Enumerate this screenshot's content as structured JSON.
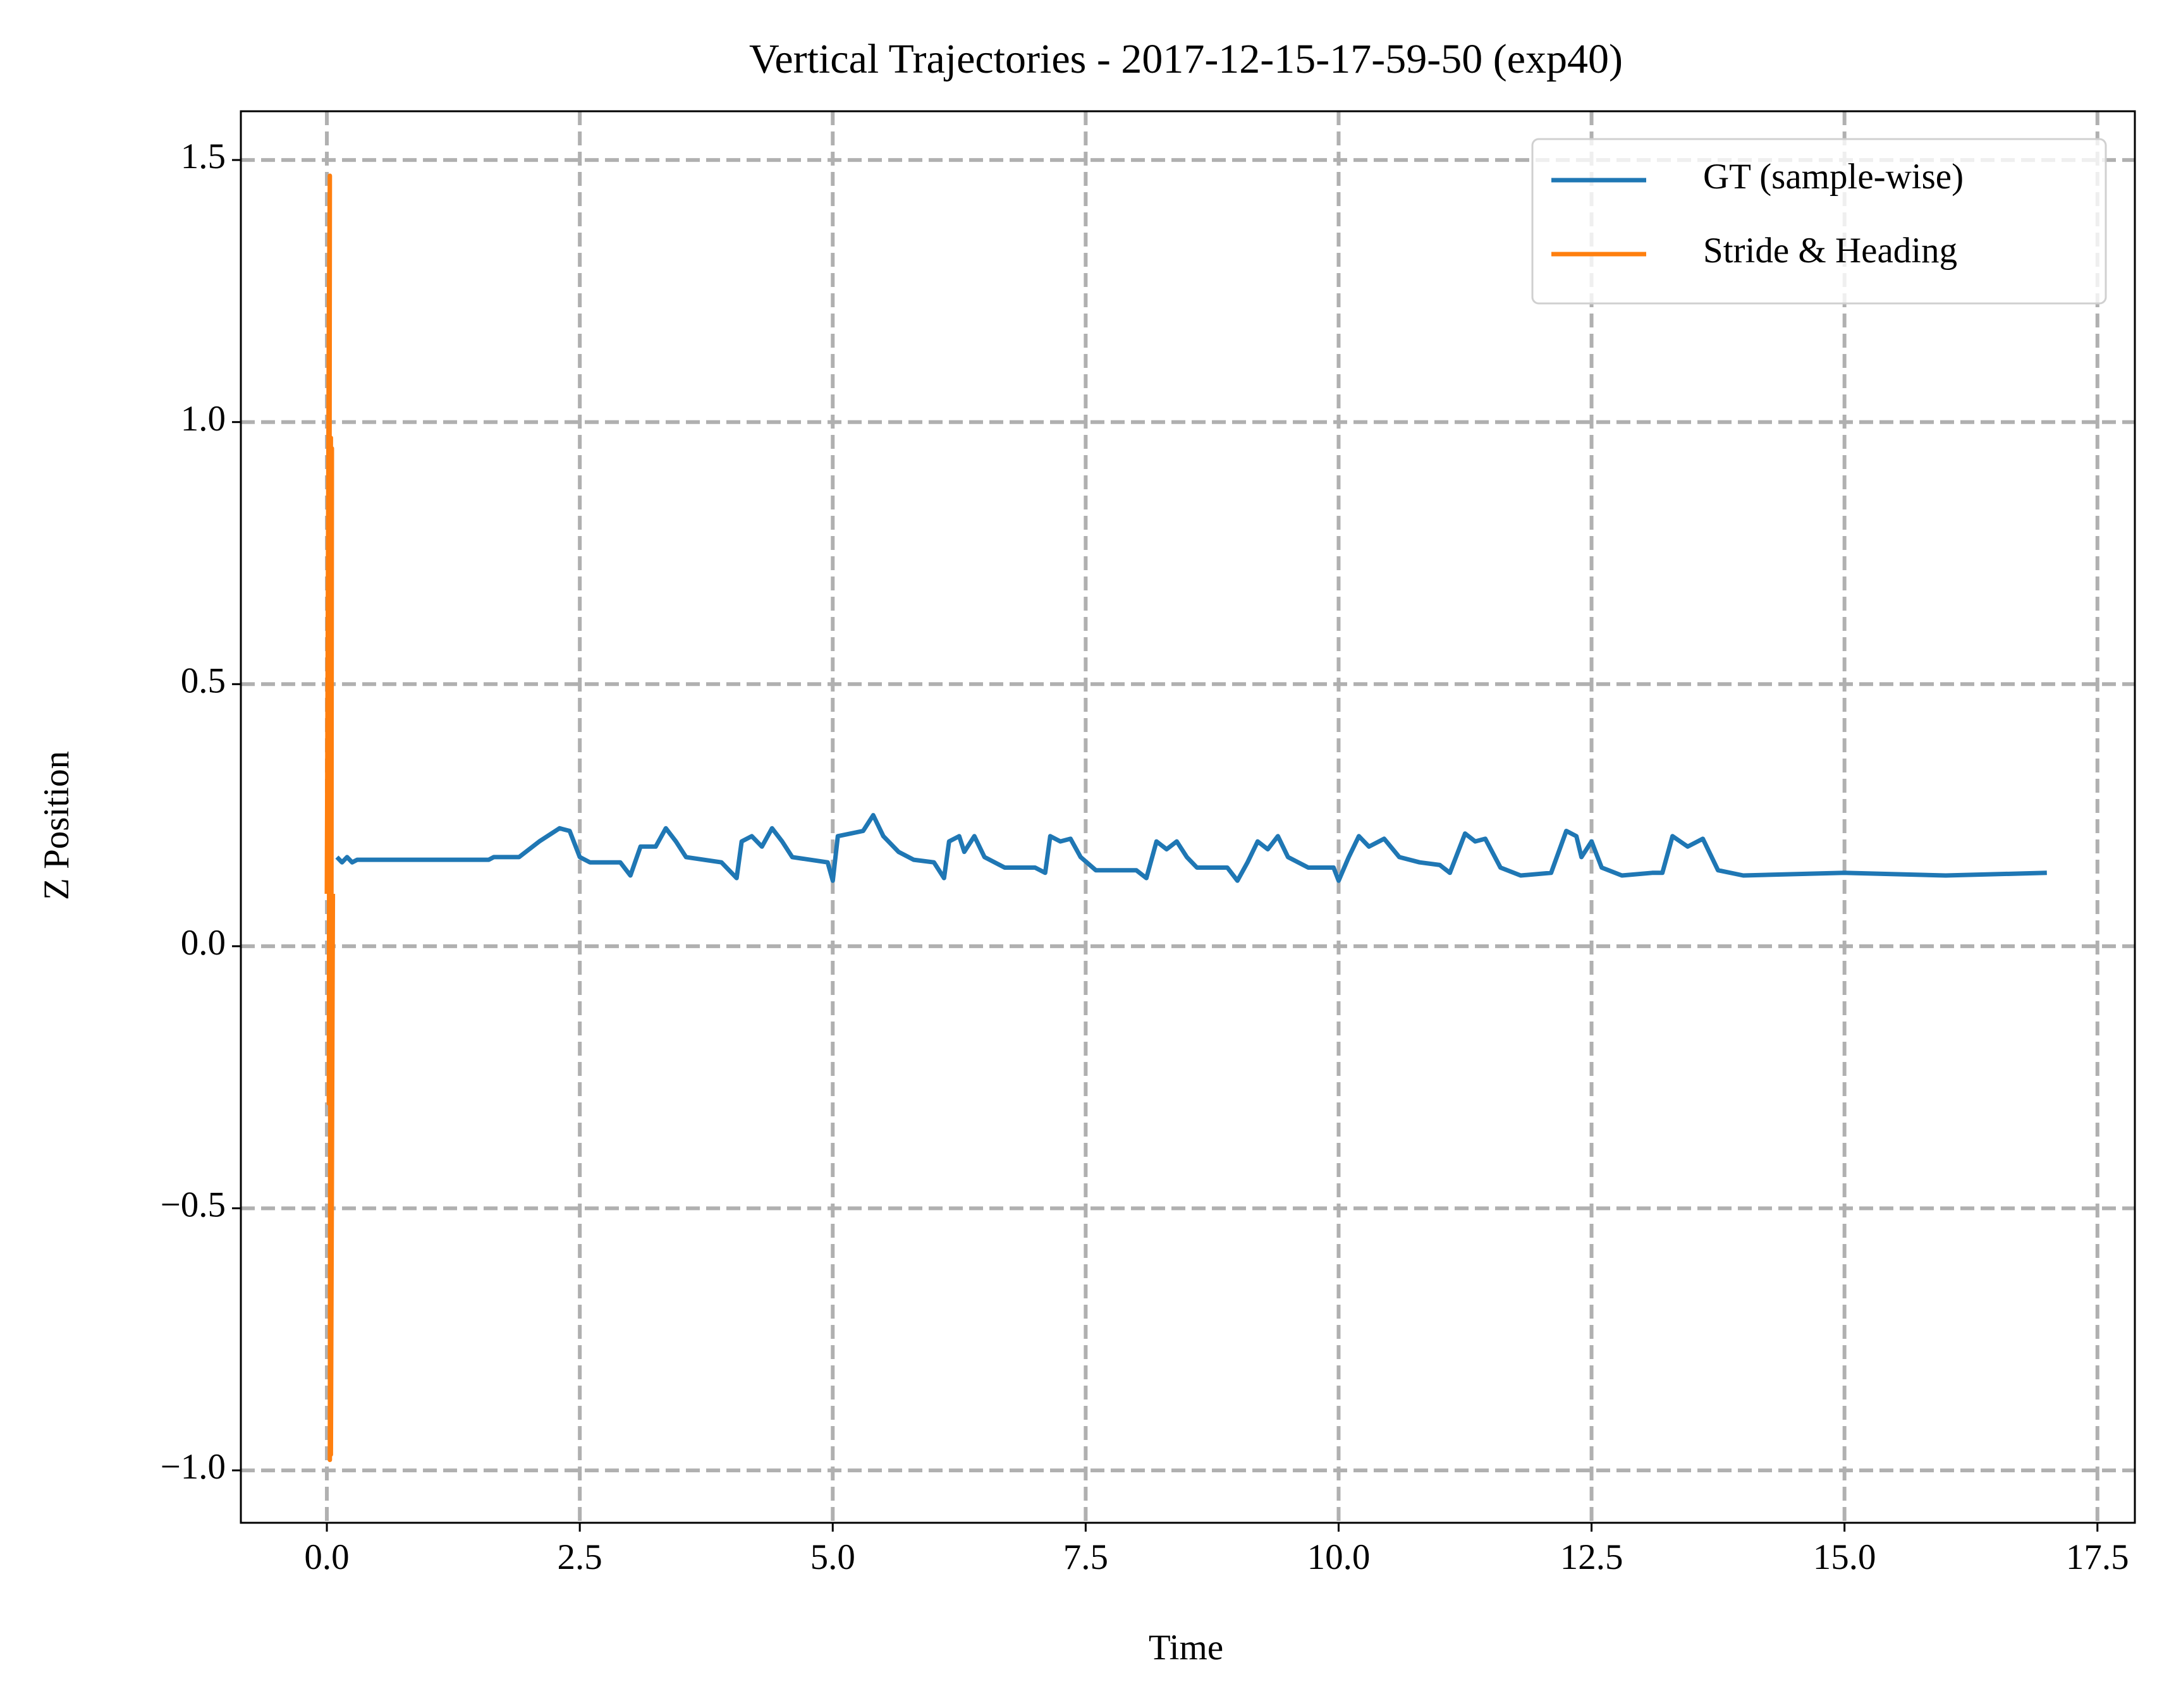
{
  "chart_data": {
    "type": "line",
    "title": "Vertical Trajectories - 2017-12-15-17-59-50 (exp40)",
    "xlabel": "Time",
    "ylabel": "Z Position",
    "xlim": [
      -0.85,
      17.87
    ],
    "ylim": [
      -1.1,
      1.593
    ],
    "xticks": [
      {
        "value": 0,
        "label": "0.0"
      },
      2.5,
      {
        "value": 5,
        "label": "5.0"
      },
      7.5,
      {
        "value": 10,
        "label": "10.0"
      },
      12.5,
      {
        "value": 15,
        "label": "15.0"
      },
      17.5
    ],
    "yticks": [
      {
        "value": -1,
        "label": "−1.0"
      },
      {
        "value": -0.5,
        "label": "−0.5"
      },
      {
        "value": 0,
        "label": "0.0"
      },
      0.5,
      {
        "value": 1,
        "label": "1.0"
      },
      1.5
    ],
    "grid": true,
    "legend": "upper right",
    "series": [
      {
        "name": "GT (sample-wise)",
        "color": "#1f77b4",
        "x": [
          0.1,
          0.15,
          0.2,
          0.25,
          0.3,
          1.0,
          1.6,
          1.65,
          1.9,
          2.1,
          2.3,
          2.4,
          2.5,
          2.6,
          2.9,
          3.0,
          3.1,
          3.25,
          3.35,
          3.45,
          3.55,
          3.9,
          4.05,
          4.1,
          4.2,
          4.3,
          4.4,
          4.5,
          4.6,
          4.95,
          5.0,
          5.05,
          5.3,
          5.4,
          5.5,
          5.65,
          5.8,
          6.0,
          6.1,
          6.15,
          6.25,
          6.3,
          6.4,
          6.5,
          6.7,
          7.0,
          7.1,
          7.15,
          7.25,
          7.35,
          7.45,
          7.6,
          8.0,
          8.1,
          8.2,
          8.3,
          8.4,
          8.5,
          8.6,
          8.9,
          9.0,
          9.1,
          9.2,
          9.3,
          9.4,
          9.5,
          9.7,
          9.95,
          10.0,
          10.1,
          10.2,
          10.3,
          10.45,
          10.6,
          10.8,
          11.0,
          11.1,
          11.25,
          11.35,
          11.45,
          11.6,
          11.8,
          12.1,
          12.25,
          12.35,
          12.4,
          12.5,
          12.6,
          12.8,
          13.1,
          13.2,
          13.3,
          13.45,
          13.6,
          13.75,
          14.0,
          15.0,
          16.0,
          17.0
        ],
        "values": [
          0.17,
          0.16,
          0.17,
          0.16,
          0.165,
          0.165,
          0.165,
          0.17,
          0.17,
          0.2,
          0.225,
          0.22,
          0.17,
          0.16,
          0.16,
          0.135,
          0.19,
          0.19,
          0.225,
          0.2,
          0.17,
          0.16,
          0.13,
          0.2,
          0.21,
          0.19,
          0.225,
          0.2,
          0.17,
          0.16,
          0.125,
          0.21,
          0.22,
          0.25,
          0.21,
          0.18,
          0.165,
          0.16,
          0.13,
          0.2,
          0.21,
          0.18,
          0.21,
          0.17,
          0.15,
          0.15,
          0.14,
          0.21,
          0.2,
          0.205,
          0.17,
          0.145,
          0.145,
          0.13,
          0.2,
          0.185,
          0.2,
          0.17,
          0.15,
          0.15,
          0.125,
          0.16,
          0.2,
          0.185,
          0.21,
          0.17,
          0.15,
          0.15,
          0.125,
          0.17,
          0.21,
          0.19,
          0.205,
          0.17,
          0.16,
          0.155,
          0.14,
          0.215,
          0.2,
          0.205,
          0.15,
          0.135,
          0.14,
          0.22,
          0.21,
          0.17,
          0.2,
          0.15,
          0.135,
          0.14,
          0.14,
          0.21,
          0.19,
          0.205,
          0.145,
          0.135,
          0.14,
          0.135,
          0.14
        ]
      },
      {
        "name": "Stride & Heading",
        "color": "#ff7f0e",
        "x": [
          0.0,
          0.02,
          0.03,
          0.02,
          0.04,
          0.03,
          0.05,
          0.04,
          0.06
        ],
        "values": [
          0.1,
          1.2,
          1.47,
          -0.3,
          0.97,
          -0.98,
          0.95,
          -0.97,
          0.1
        ]
      }
    ]
  }
}
